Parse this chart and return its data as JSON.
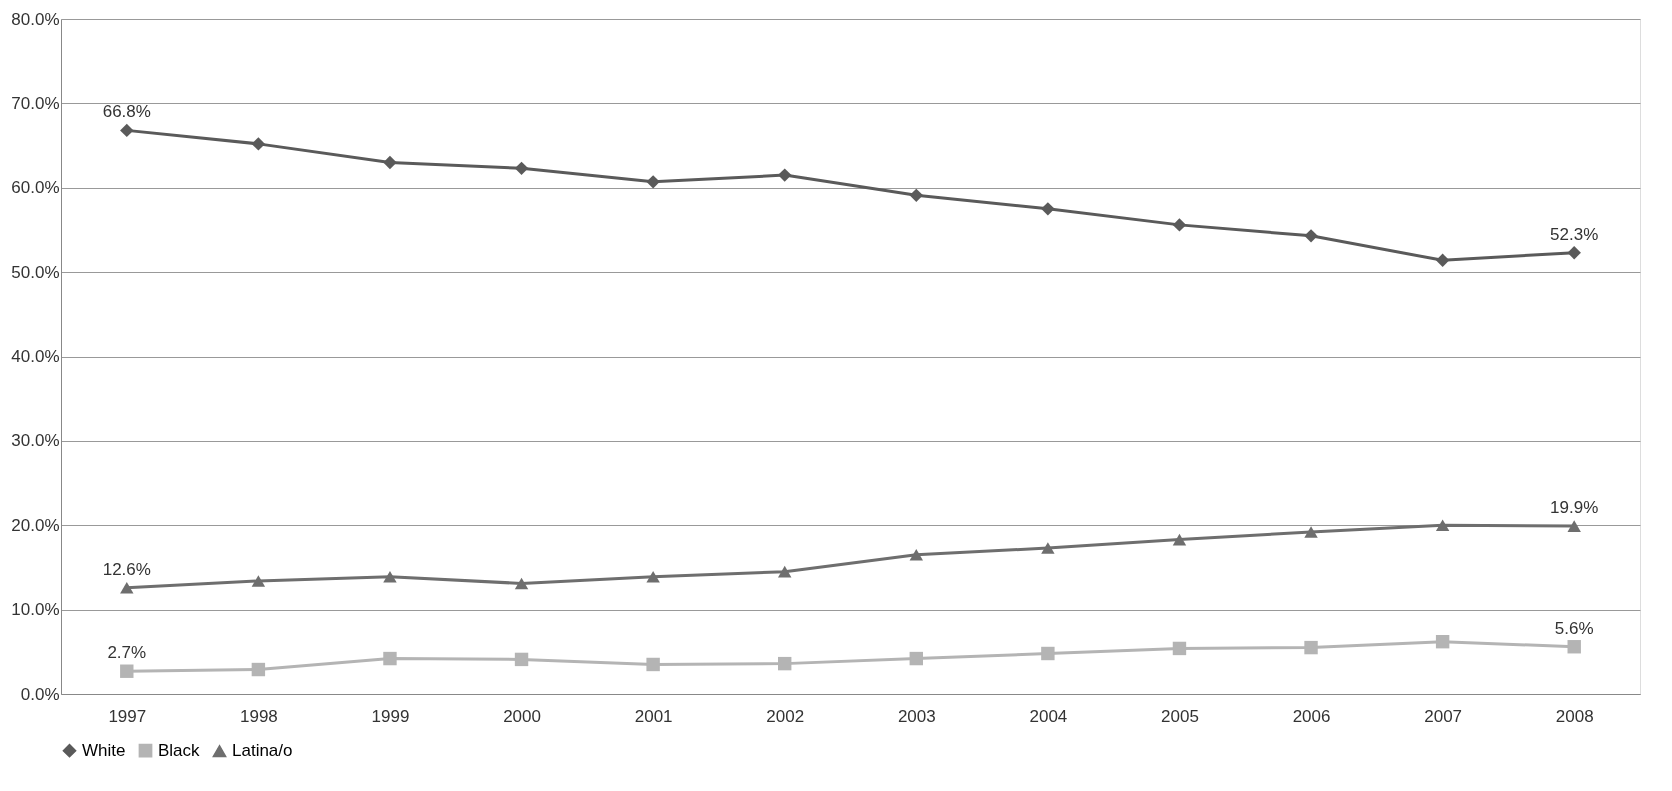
{
  "chart_data": {
    "type": "line",
    "categories": [
      "1997",
      "1998",
      "1999",
      "2000",
      "2001",
      "2002",
      "2003",
      "2004",
      "2005",
      "2006",
      "2007",
      "2008"
    ],
    "series": [
      {
        "name": "White",
        "color": "#5a5a5a",
        "marker": "diamond",
        "values": [
          66.8,
          65.2,
          63.0,
          62.3,
          60.7,
          61.5,
          59.1,
          57.5,
          55.6,
          54.3,
          51.4,
          52.3
        ],
        "value_labels": [
          "66.8%",
          null,
          null,
          null,
          null,
          null,
          null,
          null,
          null,
          null,
          null,
          "52.3%"
        ]
      },
      {
        "name": "Black",
        "color": "#b4b4b4",
        "marker": "square",
        "values": [
          2.7,
          2.9,
          4.2,
          4.1,
          3.5,
          3.6,
          4.2,
          4.8,
          5.4,
          5.5,
          6.2,
          5.6
        ],
        "value_labels": [
          "2.7%",
          null,
          null,
          null,
          null,
          null,
          null,
          null,
          null,
          null,
          null,
          "5.6%"
        ]
      },
      {
        "name": "Latina/o",
        "color": "#6e6e6e",
        "marker": "triangle",
        "values": [
          12.6,
          13.4,
          13.9,
          13.1,
          13.9,
          14.5,
          16.5,
          17.3,
          18.3,
          19.2,
          20.0,
          19.9
        ],
        "value_labels": [
          "12.6%",
          null,
          null,
          null,
          null,
          null,
          null,
          null,
          null,
          null,
          null,
          "19.9%"
        ]
      }
    ],
    "ylim": [
      0,
      80
    ],
    "yticks": [
      {
        "value": 0,
        "label": "0.0%"
      },
      {
        "value": 10,
        "label": "10.0%"
      },
      {
        "value": 20,
        "label": "20.0%"
      },
      {
        "value": 30,
        "label": "30.0%"
      },
      {
        "value": 40,
        "label": "40.0%"
      },
      {
        "value": 50,
        "label": "50.0%"
      },
      {
        "value": 60,
        "label": "60.0%"
      },
      {
        "value": 70,
        "label": "70.0%"
      },
      {
        "value": 80,
        "label": "80.0%"
      }
    ],
    "grid": "y",
    "legend": "bottom",
    "line_style": "solid"
  }
}
